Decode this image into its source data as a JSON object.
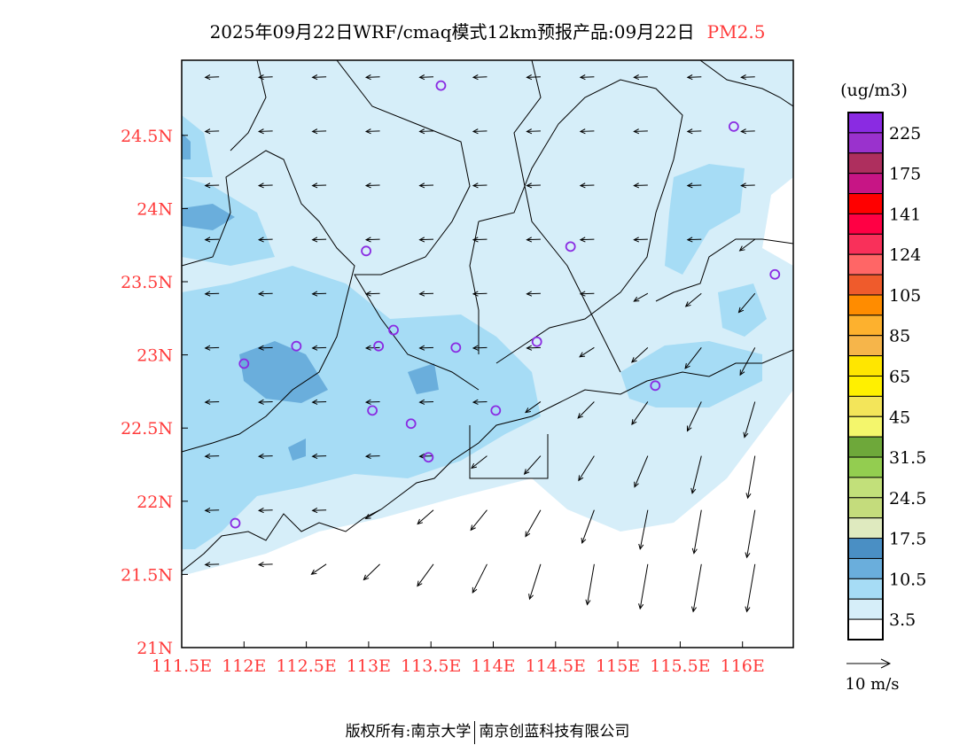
{
  "title": {
    "main": "2025年09月22日WRF/cmaq模式12km预报产品:09月22日",
    "species": "PM2.5"
  },
  "chart_data": {
    "type": "map",
    "title": "2025年09月22日WRF/cmaq模式12km预报产品:09月22日 PM2.5",
    "xlim": [
      111.5,
      116.4
    ],
    "ylim": [
      21.0,
      25.0
    ],
    "x_ticks": [
      "111.5E",
      "112E",
      "112.5E",
      "113E",
      "113.5E",
      "114E",
      "114.5E",
      "115E",
      "115.5E",
      "116E"
    ],
    "x_tick_values": [
      111.5,
      112,
      112.5,
      113,
      113.5,
      114,
      114.5,
      115,
      115.5,
      116
    ],
    "y_ticks": [
      "21N",
      "21.5N",
      "22N",
      "22.5N",
      "23N",
      "23.5N",
      "24N",
      "24.5N"
    ],
    "y_tick_values": [
      21,
      21.5,
      22,
      22.5,
      23,
      23.5,
      24,
      24.5
    ],
    "colorbar": {
      "unit": "(ug/m3)",
      "labels": [
        "3.5",
        "10.5",
        "17.5",
        "24.5",
        "31.5",
        "45",
        "65",
        "85",
        "105",
        "124",
        "141",
        "175",
        "225"
      ],
      "colors": [
        "#ffffff",
        "#d6eef9",
        "#a6dcf5",
        "#6aaedc",
        "#4a8fc4",
        "#dfeabf",
        "#c4dc7c",
        "#c2e07a",
        "#93cd50",
        "#6ea83a",
        "#f4f66c",
        "#f3e55a",
        "#fff000",
        "#ffe600",
        "#f6b54a",
        "#fdb12e",
        "#ff8c00",
        "#ef5b2c",
        "#ff6666",
        "#f9305a",
        "#ff0044",
        "#ff0000",
        "#c71585",
        "#ae2f5e",
        "#9a32cd",
        "#8a2be2"
      ]
    },
    "vector_legend": "10 m/s",
    "stations": [
      [
        113.58,
        24.84
      ],
      [
        115.93,
        24.56
      ],
      [
        112.98,
        23.71
      ],
      [
        114.62,
        23.74
      ],
      [
        116.26,
        23.55
      ],
      [
        112.42,
        23.06
      ],
      [
        112.0,
        22.94
      ],
      [
        113.2,
        23.17
      ],
      [
        113.08,
        23.06
      ],
      [
        113.7,
        23.05
      ],
      [
        114.35,
        23.09
      ],
      [
        115.3,
        22.79
      ],
      [
        113.03,
        22.62
      ],
      [
        113.34,
        22.53
      ],
      [
        114.02,
        22.62
      ],
      [
        113.48,
        22.3
      ],
      [
        111.93,
        21.85
      ]
    ]
  },
  "footer": {
    "left": "版权所有:南京大学",
    "right": "南京创蓝科技有限公司"
  }
}
